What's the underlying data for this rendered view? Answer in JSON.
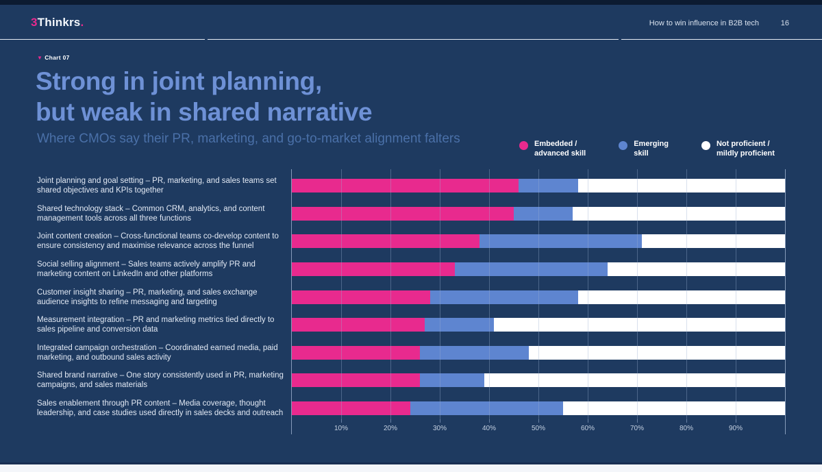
{
  "header": {
    "brand": {
      "prefix": "3",
      "name": "Thinkrs",
      "dot": "."
    },
    "doc_title": "How to win influence in B2B tech",
    "page_number": "16"
  },
  "chart_header": {
    "tag_marker": "▼",
    "tag": "Chart 07",
    "title_line1": "Strong in joint planning,",
    "title_line2": "but weak in shared narrative",
    "subtitle": "Where CMOs say their PR, marketing, and go-to-market alignment falters"
  },
  "legend": {
    "items": [
      {
        "lines": [
          "Embedded /",
          "advanced skill"
        ],
        "color": "#e82a8e"
      },
      {
        "lines": [
          "Emerging",
          "skill"
        ],
        "color": "#5e85d0"
      },
      {
        "lines": [
          "Not proficient /",
          "mildly proficient"
        ],
        "color": "#ffffff"
      }
    ]
  },
  "colors": {
    "background": "#1e3a60",
    "accent_pink": "#e82a8e",
    "accent_blue": "#5e85d0",
    "title_blue": "#6e91d6",
    "subtitle_blue": "#4a70a8",
    "footer_light": "#f4f6fa"
  },
  "chart_data": {
    "type": "bar",
    "stacked": true,
    "orientation": "horizontal",
    "categories": [
      "Joint planning and goal setting – PR, marketing, and sales teams set shared objectives and KPIs together",
      "Shared technology stack – Common CRM, analytics, and content management tools across all three functions",
      "Joint content creation – Cross-functional teams co-develop content to ensure consistency and maximise relevance across the funnel",
      "Social selling alignment – Sales teams actively amplify PR and marketing content on LinkedIn and other platforms",
      "Customer insight sharing – PR, marketing, and sales exchange audience insights to refine messaging and targeting",
      "Measurement integration – PR and marketing metrics tied directly to sales pipeline and conversion data",
      "Integrated campaign orchestration – Coordinated earned media, paid marketing, and outbound sales activity",
      "Shared brand narrative – One story consistently used in PR, marketing campaigns, and sales materials",
      "Sales enablement through PR content – Media coverage, thought leadership, and case studies used directly in sales decks and outreach"
    ],
    "series": [
      {
        "name": "Embedded / advanced skill",
        "color": "#e82a8e",
        "values": [
          46,
          45,
          38,
          33,
          28,
          27,
          26,
          26,
          24
        ]
      },
      {
        "name": "Emerging skill",
        "color": "#5e85d0",
        "values": [
          12,
          12,
          33,
          31,
          30,
          14,
          22,
          13,
          31
        ]
      },
      {
        "name": "Not proficient / mildly proficient",
        "color": "#ffffff",
        "values": [
          42,
          43,
          29,
          36,
          42,
          59,
          52,
          61,
          45
        ]
      }
    ],
    "x_ticks": [
      "10%",
      "20%",
      "30%",
      "40%",
      "50%",
      "60%",
      "70%",
      "80%",
      "90%"
    ],
    "xlim": [
      0,
      100
    ],
    "grid": true,
    "legend_position": "top-right"
  }
}
